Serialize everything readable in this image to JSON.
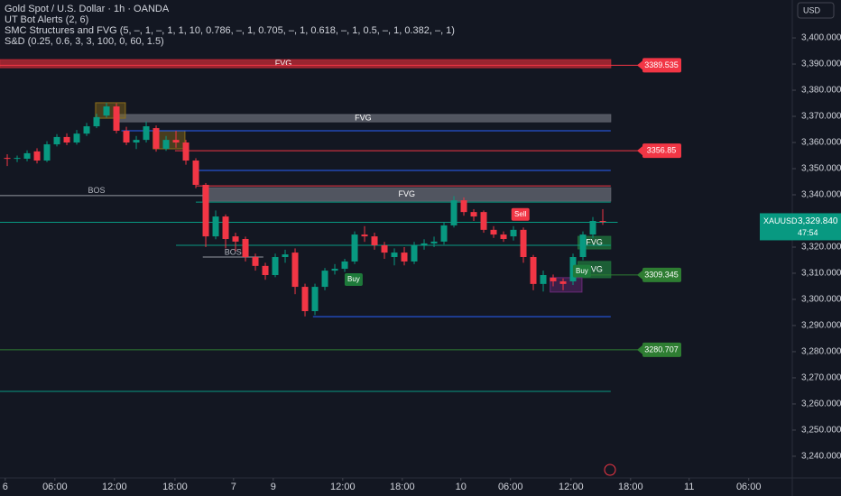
{
  "header": {
    "symbol": "Gold Spot / U.S. Dollar · 1h · OANDA",
    "indicators": [
      "UT Bot Alerts (2, 6)",
      "SMC Structures and FVG (5, –, 1, –, 1, 1, 10, 0.786, –, 1, 0.705, –, 1, 0.618, –, 1, 0.5, –, 1, 0.382, –, 1)",
      "S&D (0.25, 0.6, 3, 3, 100, 0, 60, 1.5)"
    ],
    "currency": "USD"
  },
  "chart_data": {
    "type": "candlestick",
    "open": [
      3354.1,
      3353.8,
      3353.8,
      3356.6,
      3353.1,
      3359.3,
      3362.1,
      3360.0,
      3363.4,
      3366.2,
      3370.3,
      3373.8,
      3364.5,
      3360.0,
      3361.0,
      3365.5,
      3357.6,
      3361.0,
      3360.0,
      3353.1,
      3343.8,
      3324.1,
      3331.7,
      3324.1,
      3323.1,
      3316.2,
      3312.8,
      3309.3,
      3316.2,
      3317.9,
      3304.8,
      3295.5,
      3304.8,
      3311.0,
      3311.7,
      3314.5,
      3324.8,
      3324.1,
      3320.7,
      3316.2,
      3317.9,
      3314.5,
      3320.7,
      3321.4,
      3322.1,
      3328.3,
      3337.9,
      3333.4,
      3333.4,
      3326.6,
      3324.8,
      3324.1,
      3326.6,
      3316.2,
      3305.9,
      3308.3,
      3306.9,
      3306.9,
      3316.2,
      3324.8,
      3330.0
    ],
    "high": [
      3355.5,
      3355.0,
      3357.0,
      3357.8,
      3360.5,
      3363.2,
      3363.5,
      3364.8,
      3367.5,
      3371.0,
      3375.2,
      3375.0,
      3366.0,
      3362.5,
      3368.0,
      3366.5,
      3362.5,
      3364.5,
      3361.0,
      3354.0,
      3344.5,
      3334.0,
      3332.5,
      3325.5,
      3324.0,
      3317.5,
      3314.0,
      3317.5,
      3319.0,
      3319.5,
      3306.0,
      3306.0,
      3312.0,
      3313.5,
      3315.5,
      3326.0,
      3328.0,
      3325.5,
      3322.0,
      3319.5,
      3320.0,
      3322.0,
      3323.0,
      3324.0,
      3329.5,
      3339.5,
      3339.0,
      3334.5,
      3334.0,
      3328.0,
      3326.0,
      3328.0,
      3327.5,
      3317.0,
      3311.0,
      3309.5,
      3308.0,
      3317.5,
      3326.0,
      3331.5,
      3334.5
    ],
    "low": [
      3351.0,
      3352.5,
      3352.8,
      3352.0,
      3352.5,
      3358.5,
      3359.0,
      3359.2,
      3362.5,
      3365.5,
      3369.5,
      3363.5,
      3359.0,
      3357.5,
      3360.0,
      3356.5,
      3356.8,
      3358.0,
      3351.5,
      3342.5,
      3320.0,
      3323.0,
      3319.5,
      3318.5,
      3314.5,
      3311.0,
      3307.5,
      3308.5,
      3314.0,
      3302.0,
      3293.5,
      3294.0,
      3303.5,
      3309.5,
      3310.5,
      3313.5,
      3322.0,
      3319.0,
      3315.5,
      3313.0,
      3313.0,
      3313.5,
      3319.0,
      3320.0,
      3321.0,
      3327.5,
      3332.0,
      3330.0,
      3325.5,
      3323.5,
      3322.0,
      3322.5,
      3314.0,
      3303.5,
      3303.0,
      3305.0,
      3303.5,
      3305.5,
      3315.0,
      3323.5,
      3328.5
    ],
    "close": [
      3353.8,
      3354.1,
      3355.9,
      3353.1,
      3359.3,
      3362.1,
      3360.0,
      3363.4,
      3366.2,
      3369.7,
      3373.8,
      3364.5,
      3360.0,
      3361.0,
      3366.2,
      3357.6,
      3361.0,
      3360.0,
      3353.1,
      3343.8,
      3324.1,
      3331.7,
      3323.1,
      3322.1,
      3316.2,
      3312.8,
      3309.3,
      3316.2,
      3317.2,
      3304.8,
      3295.5,
      3304.8,
      3311.0,
      3311.7,
      3314.5,
      3324.8,
      3324.1,
      3320.7,
      3317.9,
      3317.9,
      3314.5,
      3320.7,
      3321.4,
      3322.1,
      3328.3,
      3337.9,
      3333.4,
      3331.7,
      3326.6,
      3324.8,
      3323.1,
      3326.6,
      3316.2,
      3305.9,
      3309.3,
      3306.9,
      3305.9,
      3316.2,
      3324.8,
      3330.0,
      3329.84
    ],
    "up_color": "#089981",
    "down_color": "#f23645",
    "xlim": [
      -0.73,
      79.09
    ],
    "ylim": [
      3231.7,
      3414.5
    ],
    "xticks": [
      {
        "value": -0.2,
        "label": "6"
      },
      {
        "value": 4.8,
        "label": "06:00"
      },
      {
        "value": 10.8,
        "label": "12:00"
      },
      {
        "value": 16.9,
        "label": "18:00"
      },
      {
        "value": 22.8,
        "label": "7"
      },
      {
        "value": 26.8,
        "label": "9"
      },
      {
        "value": 33.8,
        "label": "12:00"
      },
      {
        "value": 39.8,
        "label": "18:00"
      },
      {
        "value": 45.7,
        "label": "10"
      },
      {
        "value": 50.7,
        "label": "06:00"
      },
      {
        "value": 56.8,
        "label": "12:00"
      },
      {
        "value": 62.8,
        "label": "18:00"
      },
      {
        "value": 68.7,
        "label": "11"
      },
      {
        "value": 74.7,
        "label": "06:00"
      }
    ],
    "yticks": [
      {
        "value": 3400,
        "label": "3,400.000"
      },
      {
        "value": 3390,
        "label": "3,390.000"
      },
      {
        "value": 3380,
        "label": "3,380.000"
      },
      {
        "value": 3370,
        "label": "3,370.000"
      },
      {
        "value": 3360,
        "label": "3,360.000"
      },
      {
        "value": 3350,
        "label": "3,350.000"
      },
      {
        "value": 3340,
        "label": "3,340.000"
      },
      {
        "value": 3330,
        "label": "3,330.000"
      },
      {
        "value": 3320,
        "label": "3,320.000"
      },
      {
        "value": 3310,
        "label": "3,310.000"
      },
      {
        "value": 3300,
        "label": "3,300.000"
      },
      {
        "value": 3290,
        "label": "3,290.000"
      },
      {
        "value": 3280,
        "label": "3,280.000"
      },
      {
        "value": 3270,
        "label": "3,270.000"
      },
      {
        "value": 3260,
        "label": "3,260.000"
      },
      {
        "value": 3250,
        "label": "3,250.000"
      },
      {
        "value": 3240,
        "label": "3,240.000"
      }
    ],
    "zones": [
      {
        "label": "FVG",
        "top": 3391.7,
        "bottom": 3388.6,
        "from": -0.73,
        "to": 60.8,
        "color": "#b22833"
      },
      {
        "label": "FVG",
        "top": 3370.7,
        "bottom": 3367.9,
        "from": 10.9,
        "to": 60.8,
        "color": "#5d606b"
      },
      {
        "label": "FVG",
        "top": 3342.7,
        "bottom": 3337.6,
        "from": 19.7,
        "to": 60.8,
        "color": "#5d606b"
      },
      {
        "label": "FVG",
        "top": 3324.1,
        "bottom": 3319.3,
        "from": 57.5,
        "to": 60.8,
        "color": "#1e6b3a"
      },
      {
        "label": "FVG",
        "top": 3314.5,
        "bottom": 3308.3,
        "from": 57.5,
        "to": 60.8,
        "color": "#1e6b3a"
      },
      {
        "top": 3375.2,
        "bottom": 3369.3,
        "from": 8.9,
        "to": 11.9,
        "color": "#8a6d1a"
      },
      {
        "top": 3364.5,
        "bottom": 3357.6,
        "from": 14.7,
        "to": 17.9,
        "color": "#8a6d1a"
      },
      {
        "top": 3308.3,
        "bottom": 3302.8,
        "from": 54.7,
        "to": 57.9,
        "color": "#6a2a7a"
      }
    ],
    "lines": [
      {
        "value": 3364.5,
        "from": 11.5,
        "to": 60.8,
        "color": "#2962ff"
      },
      {
        "value": 3349.3,
        "from": 19,
        "to": 60.8,
        "color": "#2962ff"
      },
      {
        "value": 3343.4,
        "from": 19,
        "to": 60.8,
        "color": "#f23645"
      },
      {
        "value": 3337.2,
        "from": 19,
        "to": 60.8,
        "color": "#089981"
      },
      {
        "value": 3329.5,
        "from": -0.73,
        "to": 61.5,
        "color": "#089981"
      },
      {
        "value": 3320.7,
        "from": 17,
        "to": 60.8,
        "color": "#089981"
      },
      {
        "value": 3293.4,
        "from": 30.8,
        "to": 60.8,
        "color": "#2962ff"
      },
      {
        "value": 3264.8,
        "from": -0.73,
        "to": 60.8,
        "color": "#089981"
      },
      {
        "label": "BOS",
        "value": 3339.7,
        "from": -0.73,
        "to": 20,
        "color": "#9598a1"
      },
      {
        "label": "BOS",
        "value": 3316.2,
        "from": 19.7,
        "to": 25.8,
        "color": "#9598a1"
      }
    ],
    "tags": [
      {
        "value": 3389.535,
        "color": "#f23645",
        "from": -0.73
      },
      {
        "value": 3356.85,
        "color": "#f23645",
        "from": 16.9
      },
      {
        "value": 3309.345,
        "color": "#2e7d32",
        "from": 57.5
      },
      {
        "value": 3280.707,
        "color": "#2e7d32",
        "from": -0.73
      }
    ],
    "signals": [
      {
        "label": "Buy",
        "x": 34.9,
        "price": 3307.6,
        "color": "#1e7a3a"
      },
      {
        "label": "Sell",
        "x": 51.7,
        "price": 3332.5,
        "color": "#f23645"
      },
      {
        "label": "Buy",
        "x": 57.9,
        "price": 3310.8,
        "color": "#1e7a3a"
      }
    ],
    "last": {
      "symbol": "XAUUSD",
      "price": {
        "value": 3329.84,
        "label": "3,329.840"
      },
      "countdown": "47:54",
      "color": "#089981"
    }
  }
}
